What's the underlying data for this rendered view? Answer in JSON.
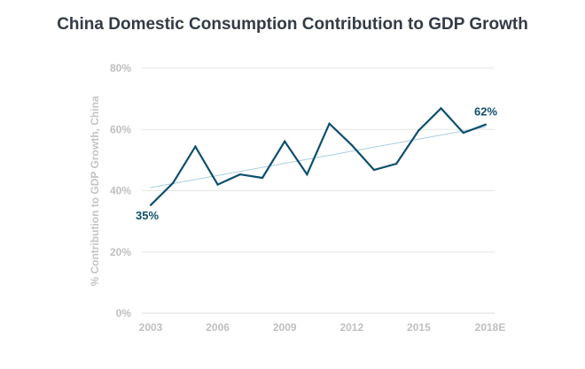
{
  "chart_data": {
    "type": "line",
    "title": "China Domestic Consumption Contribution to GDP Growth",
    "ylabel": "% Contribution to GDP Growth, China",
    "xlabel": "",
    "x": [
      2003,
      2004,
      2005,
      2006,
      2007,
      2008,
      2009,
      2010,
      2011,
      2012,
      2013,
      2014,
      2015,
      2016,
      2017,
      2018
    ],
    "series": [
      {
        "values": [
          35.3,
          42.5,
          54.4,
          42.0,
          45.3,
          44.2,
          56.1,
          45.3,
          61.9,
          54.9,
          46.8,
          48.8,
          59.7,
          66.9,
          58.9,
          61.6
        ],
        "color": "#0d4f6e"
      }
    ],
    "trendline": {
      "start": 41.0,
      "end": 60.8,
      "color": "#a9cce0"
    },
    "xticks": [
      "2003",
      "2006",
      "2009",
      "2012",
      "2015",
      "2018E"
    ],
    "yticks": [
      "0%",
      "20%",
      "40%",
      "60%",
      "80%"
    ],
    "ylim": [
      0,
      80
    ],
    "grid": true,
    "data_labels": [
      "35%",
      "62%"
    ]
  }
}
